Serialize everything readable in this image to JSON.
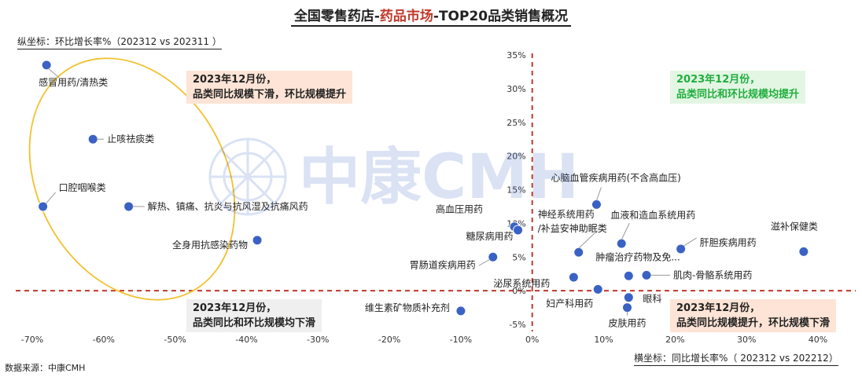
{
  "title": {
    "part1": "全国零售药店-",
    "part2": "药品市场",
    "part3": "-TOP20品类销售概况"
  },
  "ylabel": "纵坐标：环比增长率%（202312 vs 202311 ）",
  "xlabel": "横坐标：同比增长率%（ 202312 vs 202212）",
  "source": "数据来源：中康CMH",
  "watermark": "中康CMH",
  "quadrants": {
    "top_left": [
      "2023年12月份，",
      "品类同比规模下滑，环比规模提升"
    ],
    "top_right": [
      "2023年12月份，",
      "品类同比和环比规模均提升"
    ],
    "bottom_left": [
      "2023年12月份，",
      "品类同比和环比规模均下滑"
    ],
    "bottom_right": [
      "2023年12月份，",
      "品类同比规模提升，环比规模下滑"
    ]
  },
  "colors": {
    "point": "#3a62c4",
    "axis_ref": "#c0392b",
    "ellipse": "#f2c12e",
    "tr_text": "#1fae3d"
  },
  "chart_data": {
    "type": "scatter",
    "x_axis_unit": "%",
    "y_axis_unit": "%",
    "xlim": [
      -72,
      42
    ],
    "ylim": [
      -5.5,
      35
    ],
    "x_ticks": [
      "-70%",
      "-60%",
      "-50%",
      "-40%",
      "-30%",
      "-20%",
      "-10%",
      "0%",
      "10%",
      "20%",
      "30%",
      "40%"
    ],
    "x_tick_values": [
      -70,
      -60,
      -50,
      -40,
      -30,
      -20,
      -10,
      0,
      10,
      20,
      30,
      40
    ],
    "y_ticks": [
      "35%",
      "30%",
      "25%",
      "20%",
      "15%",
      "10%",
      "5%",
      "0%",
      "-5%"
    ],
    "y_tick_values": [
      35,
      30,
      25,
      20,
      15,
      10,
      5,
      0,
      -5
    ],
    "points": [
      {
        "name": "感冒用药/清热类",
        "x": -68,
        "y": 33.5
      },
      {
        "name": "止咳祛痰类",
        "x": -61.5,
        "y": 22.5
      },
      {
        "name": "口腔咽喉类",
        "x": -68.5,
        "y": 12.5
      },
      {
        "name": "解热、镇痛、抗炎与抗风湿及抗痛风药",
        "x": -56.5,
        "y": 12.5
      },
      {
        "name": "全身用抗感染药物",
        "x": -38.5,
        "y": 7.5
      },
      {
        "name": "维生素矿物质补充剂",
        "x": -10,
        "y": -3
      },
      {
        "name": "高血压用药",
        "x": -2.5,
        "y": 9.5
      },
      {
        "name": "糖尿病用药",
        "x": -2,
        "y": 9
      },
      {
        "name": "胃肠道疾病用药",
        "x": -5.5,
        "y": 5
      },
      {
        "name": "心脑血管疾病用药(不含高血压)",
        "x": 9,
        "y": 12.8
      },
      {
        "name": "神经系统用药/补益安神助眠类",
        "x": 6.5,
        "y": 5.7
      },
      {
        "name": "血液和造血系统用药",
        "x": 12.5,
        "y": 7
      },
      {
        "name": "肝胆疾病用药",
        "x": 20.8,
        "y": 6.2
      },
      {
        "name": "滋补保健类",
        "x": 38,
        "y": 5.8
      },
      {
        "name": "肿瘤治疗药物及免...",
        "x": 13.5,
        "y": 2.2
      },
      {
        "name": "肌肉-骨骼系统用药",
        "x": 16,
        "y": 2.3
      },
      {
        "name": "泌尿系统用药",
        "x": 5.8,
        "y": 2
      },
      {
        "name": "妇产科用药",
        "x": 9.2,
        "y": 0.2
      },
      {
        "name": "眼科",
        "x": 13.5,
        "y": -1
      },
      {
        "name": "皮肤用药",
        "x": 13.3,
        "y": -2.5
      }
    ]
  }
}
